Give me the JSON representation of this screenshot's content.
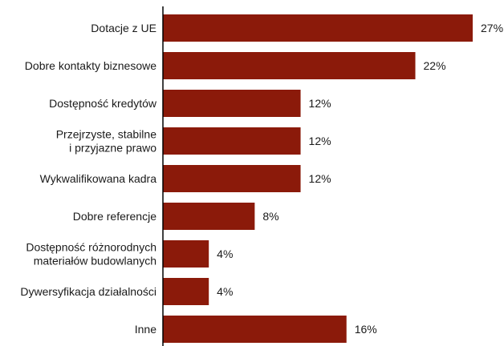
{
  "chart_data": {
    "type": "bar",
    "orientation": "horizontal",
    "categories": [
      [
        "Dotacje z UE"
      ],
      [
        "Dobre kontakty biznesowe"
      ],
      [
        "Dostępność kredytów"
      ],
      [
        "Przejrzyste, stabilne",
        "i przyjazne prawo"
      ],
      [
        "Wykwalifikowana kadra"
      ],
      [
        "Dobre referencje"
      ],
      [
        "Dostępność różnorodnych",
        "materiałów budowlanych"
      ],
      [
        "Dywersyfikacja działalności"
      ],
      [
        "Inne"
      ]
    ],
    "values": [
      27,
      22,
      12,
      12,
      12,
      8,
      4,
      4,
      16
    ],
    "value_labels": [
      "27%",
      "22%",
      "12%",
      "12%",
      "12%",
      "8%",
      "4%",
      "4%",
      "16%"
    ],
    "xlim": [
      0,
      27
    ],
    "grid": false,
    "colors": {
      "bar": "#8b1a0a",
      "axis": "#000000"
    }
  }
}
